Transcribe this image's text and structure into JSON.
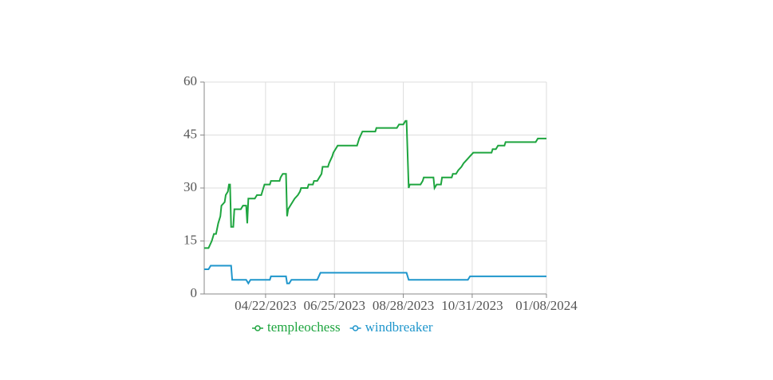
{
  "chart_data": {
    "type": "line",
    "xlim": [
      "02/24/2023",
      "01/08/2024"
    ],
    "xticks": [
      "04/22/2023",
      "06/25/2023",
      "08/28/2023",
      "10/31/2023",
      "01/08/2024"
    ],
    "ylim": [
      0,
      60
    ],
    "yticks": [
      0,
      15,
      30,
      45,
      60
    ],
    "grid": true,
    "series": [
      {
        "name": "templeochess",
        "color": "#1ea53f",
        "x": [
          "02/24/2023",
          "02/28/2023",
          "03/03/2023",
          "03/05/2023",
          "03/07/2023",
          "03/09/2023",
          "03/11/2023",
          "03/12/2023",
          "03/15/2023",
          "03/16/2023",
          "03/18/2023",
          "03/19/2023",
          "03/20/2023",
          "03/21/2023",
          "03/23/2023",
          "03/24/2023",
          "03/30/2023",
          "04/01/2023",
          "04/04/2023",
          "04/05/2023",
          "04/06/2023",
          "04/12/2023",
          "04/14/2023",
          "04/18/2023",
          "04/20/2023",
          "04/21/2023",
          "04/26/2023",
          "04/27/2023",
          "05/05/2023",
          "05/06/2023",
          "05/08/2023",
          "05/11/2023",
          "05/12/2023",
          "05/13/2023",
          "05/15/2023",
          "05/17/2023",
          "05/19/2023",
          "05/22/2023",
          "05/24/2023",
          "05/25/2023",
          "05/31/2023",
          "06/01/2023",
          "06/05/2023",
          "06/06/2023",
          "06/09/2023",
          "06/11/2023",
          "06/13/2023",
          "06/14/2023",
          "06/19/2023",
          "06/20/2023",
          "06/23/2023",
          "06/24/2023",
          "06/26/2023",
          "06/28/2023",
          "07/16/2023",
          "07/18/2023",
          "07/21/2023",
          "08/02/2023",
          "08/03/2023",
          "08/22/2023",
          "08/24/2023",
          "08/28/2023",
          "08/30/2023",
          "08/31/2023",
          "09/02/2023",
          "09/03/2023",
          "09/13/2023",
          "09/15/2023",
          "09/16/2023",
          "09/25/2023",
          "09/26/2023",
          "09/28/2023",
          "10/02/2023",
          "10/03/2023",
          "10/12/2023",
          "10/13/2023",
          "10/16/2023",
          "10/18/2023",
          "10/21/2023",
          "10/23/2023",
          "10/26/2023",
          "10/29/2023",
          "11/01/2023",
          "11/18/2023",
          "11/19/2023",
          "11/22/2023",
          "11/24/2023",
          "11/30/2023",
          "12/01/2023",
          "12/29/2023",
          "12/31/2023",
          "01/08/2024"
        ],
        "values": [
          13,
          13,
          15,
          17,
          17,
          20,
          22,
          25,
          26,
          28,
          29,
          31,
          31,
          19,
          19,
          24,
          24,
          25,
          25,
          20,
          27,
          27,
          28,
          28,
          30,
          31,
          31,
          32,
          32,
          33,
          34,
          34,
          22,
          24,
          25,
          26,
          27,
          28,
          29,
          30,
          30,
          31,
          31,
          32,
          32,
          33,
          34,
          36,
          36,
          37,
          39,
          40,
          41,
          42,
          42,
          44,
          46,
          46,
          47,
          47,
          48,
          48,
          49,
          49,
          30,
          31,
          31,
          32,
          33,
          33,
          30,
          31,
          31,
          33,
          33,
          34,
          34,
          35,
          36,
          37,
          38,
          39,
          40,
          40,
          41,
          41,
          42,
          42,
          43,
          43,
          44,
          44
        ]
      },
      {
        "name": "windbreaker",
        "color": "#1f96cc",
        "x": [
          "02/24/2023",
          "02/28/2023",
          "03/02/2023",
          "03/21/2023",
          "03/22/2023",
          "04/04/2023",
          "04/06/2023",
          "04/08/2023",
          "04/26/2023",
          "04/27/2023",
          "05/11/2023",
          "05/12/2023",
          "05/14/2023",
          "05/16/2023",
          "06/09/2023",
          "06/12/2023",
          "08/31/2023",
          "09/02/2023",
          "10/27/2023",
          "10/29/2023",
          "01/08/2024"
        ],
        "values": [
          7,
          7,
          8,
          8,
          4,
          4,
          3,
          4,
          4,
          5,
          5,
          3,
          3,
          4,
          4,
          6,
          6,
          4,
          4,
          5,
          5
        ]
      }
    ]
  }
}
